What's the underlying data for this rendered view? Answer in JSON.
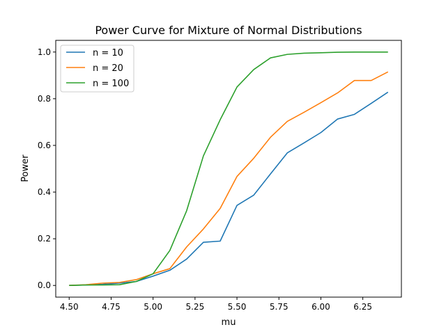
{
  "chart_data": {
    "type": "line",
    "title": "Power Curve for Mixture of Normal Distributions",
    "xlabel": "mu",
    "ylabel": "Power",
    "xlim": [
      4.42,
      6.48
    ],
    "ylim": [
      -0.05,
      1.05
    ],
    "xticks": [
      "4.50",
      "4.75",
      "5.00",
      "5.25",
      "5.50",
      "5.75",
      "6.00",
      "6.25"
    ],
    "xtick_values": [
      4.5,
      4.75,
      5.0,
      5.25,
      5.5,
      5.75,
      6.0,
      6.25
    ],
    "yticks": [
      "0.0",
      "0.2",
      "0.4",
      "0.6",
      "0.8",
      "1.0"
    ],
    "ytick_values": [
      0.0,
      0.2,
      0.4,
      0.6,
      0.8,
      1.0
    ],
    "grid": false,
    "legend_position": "top-left",
    "x": [
      4.5,
      4.6,
      4.7,
      4.8,
      4.9,
      5.0,
      5.1,
      5.2,
      5.3,
      5.4,
      5.5,
      5.6,
      5.7,
      5.8,
      5.9,
      6.0,
      6.1,
      6.2,
      6.3,
      6.4
    ],
    "series": [
      {
        "name": "n = 10",
        "color": "#1f77b4",
        "values": [
          0.0,
          0.002,
          0.005,
          0.01,
          0.017,
          0.04,
          0.065,
          0.113,
          0.185,
          0.19,
          0.343,
          0.387,
          0.478,
          0.568,
          0.611,
          0.655,
          0.713,
          0.733,
          0.78,
          0.828
        ]
      },
      {
        "name": "n = 20",
        "color": "#ff7f0e",
        "values": [
          0.0,
          0.003,
          0.01,
          0.013,
          0.025,
          0.05,
          0.072,
          0.165,
          0.242,
          0.33,
          0.467,
          0.545,
          0.635,
          0.703,
          0.742,
          0.783,
          0.825,
          0.878,
          0.878,
          0.915
        ]
      },
      {
        "name": "n = 100",
        "color": "#2ca02c",
        "values": [
          0.0,
          0.002,
          0.002,
          0.003,
          0.017,
          0.05,
          0.15,
          0.32,
          0.555,
          0.71,
          0.85,
          0.925,
          0.975,
          0.99,
          0.995,
          0.997,
          0.999,
          1.0,
          1.0,
          1.0
        ]
      }
    ]
  }
}
